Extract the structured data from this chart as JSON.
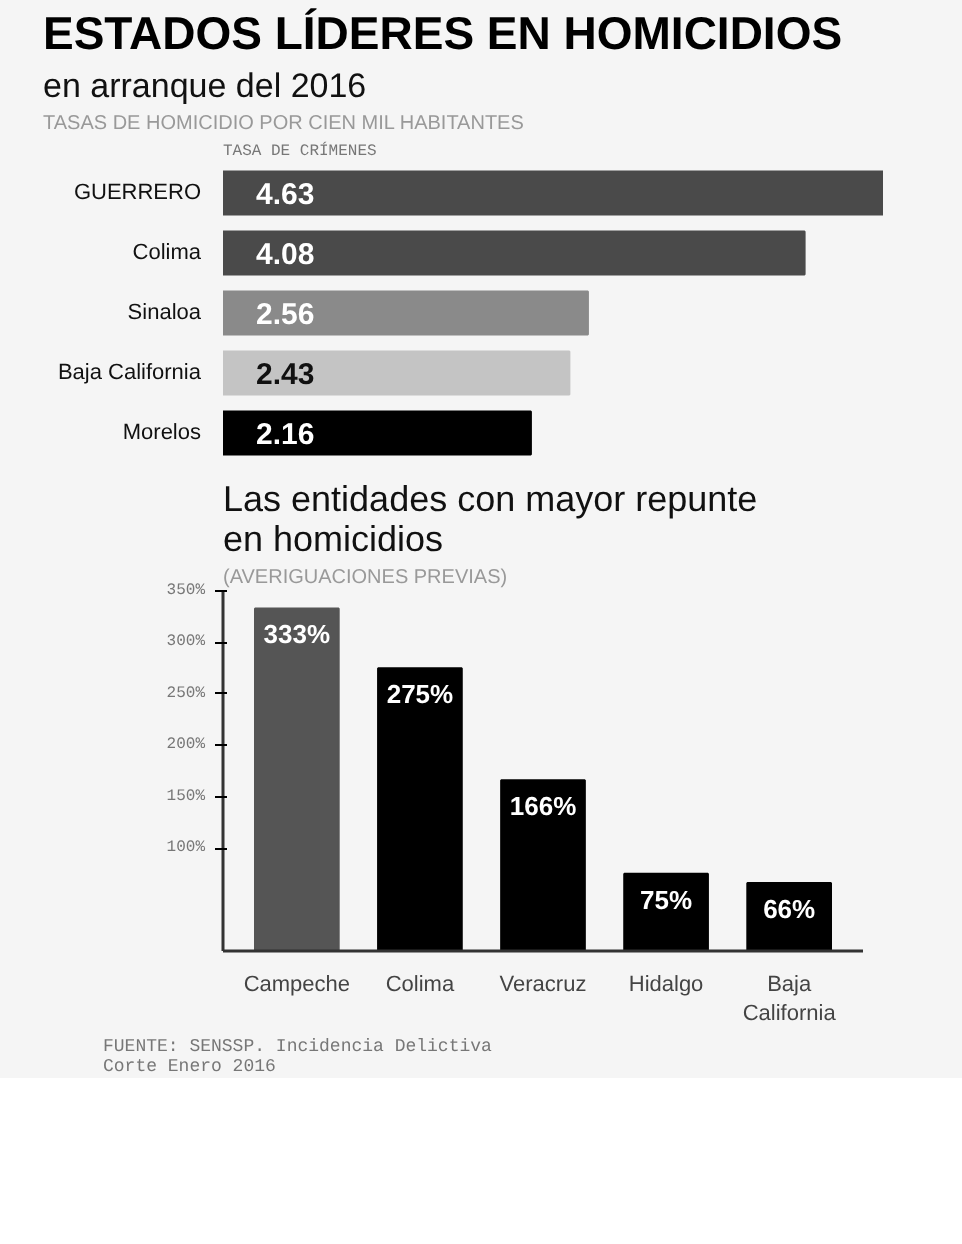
{
  "chart_data": [
    {
      "type": "bar",
      "orientation": "horizontal",
      "title": "ESTADOS LÍDERES EN HOMICIDIOS",
      "subtitle": "en arranque del 2016",
      "annotations": [
        "TASAS DE HOMICIDIO POR CIEN MIL HABITANTES",
        "TASA DE CRÍMENES"
      ],
      "categories": [
        "GUERRERO",
        "Colima",
        "Sinaloa",
        "Baja California",
        "Morelos"
      ],
      "values": [
        4.63,
        4.08,
        2.56,
        2.43,
        2.16
      ],
      "colors": [
        "#4a4a4a",
        "#4a4a4a",
        "#8a8a8a",
        "#c4c4c4",
        "#000000"
      ],
      "data_labels": true,
      "grid": false,
      "legend": false
    },
    {
      "type": "bar",
      "title": "Las entidades con mayor repunte\nen homicidios",
      "subtitle": "(AVERIGUACIONES PREVIAS)",
      "annotations": [
        "FUENTE: SENSSP. Incidencia Delictiva\nCorte Enero 2016"
      ],
      "categories": [
        "Campeche",
        "Colima",
        "Veracruz",
        "Hidalgo",
        "Baja California"
      ],
      "values": [
        333,
        275,
        166,
        75,
        66
      ],
      "value_labels": [
        "333%",
        "275%",
        "166%",
        "75%",
        "66%"
      ],
      "colors": [
        "#555555",
        "#000000",
        "#000000",
        "#000000",
        "#000000"
      ],
      "ylim": [
        0,
        350
      ],
      "yticks": [
        {
          "value": 100,
          "label": "100%"
        },
        {
          "value": 150,
          "label": "150%"
        },
        {
          "value": 200,
          "label": "200%"
        },
        {
          "value": 250,
          "label": "250%"
        },
        {
          "value": 300,
          "label": "300%"
        },
        {
          "value": 350,
          "label": "350%"
        }
      ],
      "grid": false,
      "legend": false
    }
  ]
}
